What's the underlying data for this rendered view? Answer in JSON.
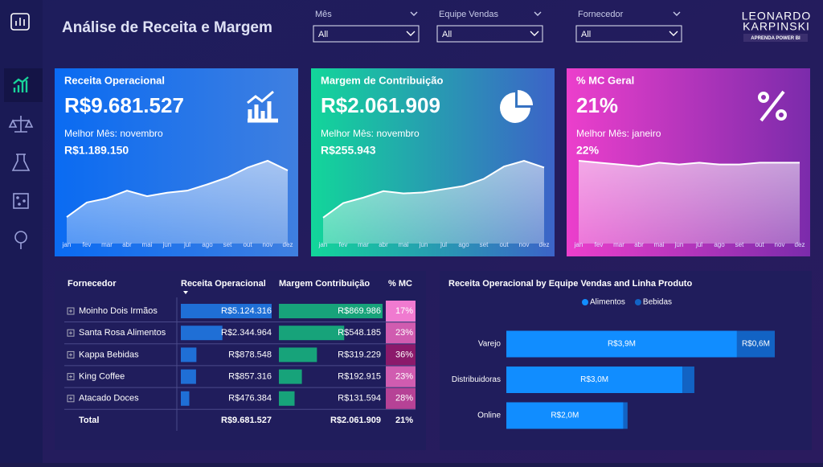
{
  "header": {
    "title": "Análise de Receita e Margem",
    "filters": [
      {
        "label": "Mês",
        "value": "All"
      },
      {
        "label": "Equipe Vendas",
        "value": "All"
      },
      {
        "label": "Fornecedor",
        "value": "All"
      }
    ],
    "logo": {
      "name": [
        "LEONARDO",
        "KARPINSKI"
      ],
      "tagline": "APRENDA POWER BI"
    }
  },
  "cards": [
    {
      "title": "Receita Operacional",
      "value": "R$9.681.527",
      "best_label": "Melhor Mês: novembro",
      "best_value": "R$1.189.150",
      "chart": {
        "type": "area",
        "categories": [
          "jan",
          "fev",
          "mar",
          "abr",
          "mai",
          "jun",
          "jul",
          "ago",
          "set",
          "out",
          "nov",
          "dez"
        ],
        "values": [
          380000,
          590000,
          650000,
          760000,
          680000,
          730000,
          760000,
          850000,
          950000,
          1090000,
          1189150,
          1050000
        ]
      }
    },
    {
      "title": "Margem de Contribuição",
      "value": "R$2.061.909",
      "best_label": "Melhor Mês: novembro",
      "best_value": "R$255.943",
      "chart": {
        "type": "area",
        "categories": [
          "jan",
          "fev",
          "mar",
          "abr",
          "mai",
          "jun",
          "jul",
          "ago",
          "set",
          "out",
          "nov",
          "dez"
        ],
        "values": [
          80000,
          125000,
          142000,
          162000,
          155000,
          158000,
          168000,
          178000,
          200000,
          238000,
          255943,
          235000
        ]
      }
    },
    {
      "title": "% MC Geral",
      "value": "21%",
      "best_label": "Melhor Mês: janeiro",
      "best_value": "22%",
      "chart": {
        "type": "area",
        "categories": [
          "jan",
          "fev",
          "mar",
          "abr",
          "mai",
          "jun",
          "jul",
          "ago",
          "set",
          "out",
          "nov",
          "dez"
        ],
        "values": [
          22,
          21.5,
          21,
          20.5,
          21.5,
          21,
          21.5,
          21,
          21,
          21.5,
          21.5,
          21.5
        ]
      }
    }
  ],
  "table": {
    "columns": [
      "Fornecedor",
      "Receita Operacional",
      "Margem Contribuição",
      "% MC"
    ],
    "rows": [
      "Moinho Dois Irmãos",
      "Santa Rosa Alimentos",
      "Kappa Bebidas",
      "King Coffee",
      "Atacado Doces"
    ],
    "receita": {
      "values": [
        5124316,
        2344964,
        878548,
        857316,
        476384
      ],
      "value_labels": [
        "R$5.124.316",
        "R$2.344.964",
        "R$878.548",
        "R$857.316",
        "R$476.384"
      ]
    },
    "margem": {
      "values": [
        869986,
        548185,
        319229,
        192915,
        131594
      ],
      "value_labels": [
        "R$869.986",
        "R$548.185",
        "R$319.229",
        "R$192.915",
        "R$131.594"
      ]
    },
    "mc": {
      "values": [
        17,
        23,
        36,
        23,
        28
      ],
      "value_labels": [
        "17%",
        "23%",
        "36%",
        "23%",
        "28%"
      ]
    },
    "total": {
      "label": "Total",
      "receita": "R$9.681.527",
      "margem": "R$2.061.909",
      "mc": "21%"
    }
  },
  "chart_data": {
    "type": "bar",
    "orientation": "horizontal",
    "stacked": true,
    "title": "Receita Operacional by Equipe Vendas and Linha Produto",
    "categories": [
      "Varejo",
      "Distribuidoras",
      "Online"
    ],
    "legend": "top",
    "series": [
      {
        "name": "Alimentos",
        "color": "#118dff",
        "values": [
          3900000,
          2980000,
          1980000
        ],
        "value_labels": [
          "R$3,9M",
          "R$3,0M",
          "R$2,0M"
        ]
      },
      {
        "name": "Bebidas",
        "color": "#1263c4",
        "values": [
          640000,
          200000,
          70000
        ],
        "value_labels": [
          "R$0,6M",
          null,
          null
        ]
      }
    ]
  }
}
